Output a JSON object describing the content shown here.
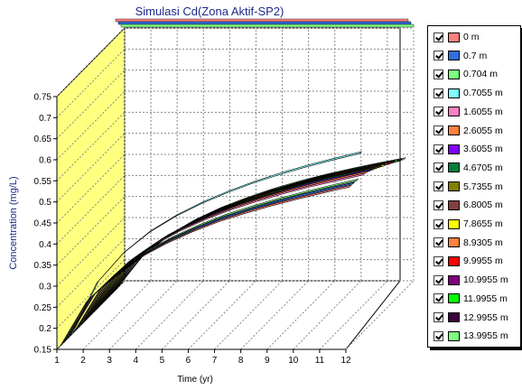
{
  "chart_data": {
    "type": "line",
    "style": "3d",
    "title": "Simulasi Cd(Zona Aktif-SP2)",
    "xlabel": "Time (yr)",
    "ylabel": "Concentration (mg/L)",
    "xlim": [
      1,
      12
    ],
    "ylim": [
      0.15,
      0.75
    ],
    "x_ticks": [
      "1",
      "2",
      "3",
      "4",
      "5",
      "6",
      "7",
      "8",
      "9",
      "10",
      "11",
      "12"
    ],
    "y_ticks": [
      "0.15",
      "0.2",
      "0.25",
      "0.3",
      "0.35",
      "0.4",
      "0.45",
      "0.5",
      "0.55",
      "0.6",
      "0.65",
      "0.7",
      "0.75"
    ],
    "grid": true,
    "legend_position": "right",
    "x": [
      1,
      2,
      3,
      4,
      5,
      6,
      7,
      8,
      9,
      10,
      11,
      12
    ],
    "series": [
      {
        "name": "0 m",
        "color": "#ff8080",
        "values": [
          0.15,
          0.255,
          0.315,
          0.358,
          0.392,
          0.42,
          0.444,
          0.464,
          0.482,
          0.498,
          0.513,
          0.527
        ]
      },
      {
        "name": "0.7 m",
        "color": "#2f6fdc",
        "values": [
          0.15,
          0.254,
          0.314,
          0.357,
          0.391,
          0.419,
          0.443,
          0.463,
          0.481,
          0.497,
          0.512,
          0.526
        ]
      },
      {
        "name": "0.704 m",
        "color": "#80ff80",
        "values": [
          0.15,
          0.253,
          0.313,
          0.356,
          0.39,
          0.418,
          0.442,
          0.462,
          0.48,
          0.496,
          0.511,
          0.525
        ]
      },
      {
        "name": "0.7055 m",
        "color": "#80ffff",
        "values": [
          0.15,
          0.275,
          0.345,
          0.395,
          0.433,
          0.464,
          0.49,
          0.513,
          0.533,
          0.551,
          0.567,
          0.582
        ]
      },
      {
        "name": "1.6055 m",
        "color": "#ff80c0",
        "values": [
          0.15,
          0.252,
          0.312,
          0.355,
          0.389,
          0.417,
          0.441,
          0.461,
          0.479,
          0.495,
          0.509,
          0.523
        ]
      },
      {
        "name": "2.6055 m",
        "color": "#ff8040",
        "values": [
          0.15,
          0.25,
          0.31,
          0.353,
          0.386,
          0.414,
          0.438,
          0.458,
          0.476,
          0.492,
          0.506,
          0.52
        ]
      },
      {
        "name": "3.6055 m",
        "color": "#8000ff",
        "values": [
          0.15,
          0.248,
          0.307,
          0.35,
          0.383,
          0.411,
          0.434,
          0.454,
          0.472,
          0.488,
          0.502,
          0.516
        ]
      },
      {
        "name": "4.6705 m",
        "color": "#008040",
        "values": [
          0.15,
          0.246,
          0.305,
          0.347,
          0.38,
          0.407,
          0.43,
          0.45,
          0.468,
          0.484,
          0.498,
          0.511
        ]
      },
      {
        "name": "5.7355 m",
        "color": "#808000",
        "values": [
          0.15,
          0.244,
          0.302,
          0.344,
          0.376,
          0.403,
          0.426,
          0.446,
          0.463,
          0.479,
          0.493,
          0.506
        ]
      },
      {
        "name": "6.8005 m",
        "color": "#804040",
        "values": [
          0.15,
          0.242,
          0.299,
          0.34,
          0.372,
          0.399,
          0.421,
          0.441,
          0.458,
          0.474,
          0.488,
          0.501
        ]
      },
      {
        "name": "7.8655 m",
        "color": "#ffff00",
        "values": [
          0.15,
          0.24,
          0.296,
          0.336,
          0.368,
          0.394,
          0.416,
          0.436,
          0.453,
          0.468,
          0.482,
          0.495
        ]
      },
      {
        "name": "8.9305 m",
        "color": "#ff8040",
        "values": [
          0.15,
          0.238,
          0.293,
          0.332,
          0.364,
          0.39,
          0.412,
          0.431,
          0.448,
          0.463,
          0.477,
          0.49
        ]
      },
      {
        "name": "9.9955 m",
        "color": "#ff0000",
        "values": [
          0.15,
          0.236,
          0.29,
          0.329,
          0.36,
          0.385,
          0.407,
          0.426,
          0.443,
          0.458,
          0.471,
          0.484
        ]
      },
      {
        "name": "10.9955 m",
        "color": "#800080",
        "values": [
          0.15,
          0.234,
          0.287,
          0.325,
          0.356,
          0.381,
          0.403,
          0.421,
          0.438,
          0.453,
          0.466,
          0.479
        ]
      },
      {
        "name": "11.9955 m",
        "color": "#00ff00",
        "values": [
          0.15,
          0.232,
          0.284,
          0.322,
          0.352,
          0.377,
          0.398,
          0.416,
          0.433,
          0.448,
          0.461,
          0.473
        ]
      },
      {
        "name": "12.9955 m",
        "color": "#400040",
        "values": [
          0.15,
          0.23,
          0.281,
          0.318,
          0.348,
          0.372,
          0.393,
          0.411,
          0.428,
          0.442,
          0.455,
          0.467
        ]
      },
      {
        "name": "13.9955 m",
        "color": "#80ff80",
        "values": [
          0.15,
          0.228,
          0.278,
          0.315,
          0.344,
          0.368,
          0.389,
          0.407,
          0.423,
          0.437,
          0.45,
          0.462
        ]
      }
    ]
  }
}
